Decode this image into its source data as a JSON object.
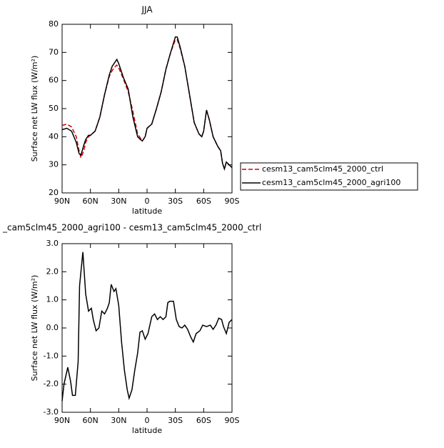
{
  "chart_data": [
    {
      "type": "line",
      "title": "JJA",
      "xlabel": "latitude",
      "ylabel": "Surface net LW flux (W/m²)",
      "x": [
        90,
        85,
        80,
        75,
        72,
        70,
        67,
        65,
        62,
        60,
        55,
        50,
        45,
        40,
        37,
        35,
        32,
        30,
        25,
        20,
        15,
        10,
        7,
        5,
        2,
        0,
        -5,
        -10,
        -15,
        -20,
        -25,
        -30,
        -32,
        -35,
        -40,
        -45,
        -50,
        -55,
        -58,
        -60,
        -63,
        -66,
        -70,
        -75,
        -78,
        -80,
        -82,
        -84,
        -87,
        -90
      ],
      "series": [
        {
          "name": "cesm13_cam5clm45_2000_ctrl",
          "color": "#cc0000",
          "linestyle": "dashed",
          "values": [
            44,
            44.5,
            43.5,
            40,
            35,
            32.5,
            35,
            38,
            40,
            40.5,
            42,
            47,
            55,
            61.5,
            63.5,
            64.5,
            65.5,
            64.5,
            60.5,
            56,
            49,
            41,
            39.5,
            38.5,
            40,
            43,
            44.5,
            50,
            56,
            64,
            70,
            74.5,
            74.5,
            71.5,
            65,
            55,
            45,
            41,
            40,
            42,
            49.5,
            46,
            40,
            36.5,
            35,
            30.5,
            28.5,
            31,
            30,
            29
          ]
        },
        {
          "name": "cesm13_cam5clm45_2000_agri100",
          "color": "#000000",
          "linestyle": "solid",
          "values": [
            42.5,
            43,
            42,
            38,
            34,
            33.5,
            37,
            39,
            40.5,
            40.5,
            42,
            47,
            55,
            62,
            65,
            66,
            67.5,
            66,
            61,
            57,
            47,
            40,
            39,
            38.5,
            40,
            43,
            44.5,
            50,
            56,
            64,
            70,
            75.5,
            75.5,
            72,
            65,
            55,
            45,
            41,
            40,
            42,
            49.5,
            46,
            40,
            36.5,
            35,
            30.5,
            28.5,
            31,
            30,
            29
          ]
        }
      ],
      "xlim": [
        90,
        -90
      ],
      "xticks": [
        {
          "value": 90,
          "label": "90N"
        },
        {
          "value": 60,
          "label": "60N"
        },
        {
          "value": 30,
          "label": "30N"
        },
        0,
        {
          "value": -30,
          "label": "30S"
        },
        {
          "value": -60,
          "label": "60S"
        },
        {
          "value": -90,
          "label": "90S"
        }
      ],
      "ylim": [
        20,
        80
      ],
      "yticks": [
        20,
        30,
        40,
        50,
        60,
        70,
        80
      ],
      "legend": "right"
    },
    {
      "type": "line",
      "title": "_cam5clm45_2000_agri100 - cesm13_cam5clm45_2000_ctrl",
      "xlabel": "latitude",
      "ylabel": "Surface net LW flux (W/m²)",
      "x": [
        90,
        88,
        84,
        81,
        79,
        76,
        73,
        71.5,
        68,
        65,
        62,
        59,
        57,
        54,
        51,
        48,
        45,
        42,
        40,
        38,
        35,
        33,
        30,
        27,
        24,
        21,
        19,
        16,
        13,
        10,
        7.5,
        5,
        2,
        -1,
        -5,
        -8,
        -11,
        -14,
        -17,
        -20,
        -22,
        -24,
        -28,
        -31,
        -34,
        -37,
        -40,
        -43,
        -46,
        -49,
        -52,
        -56,
        -59,
        -63,
        -67,
        -70,
        -73,
        -76,
        -79,
        -81,
        -84,
        -87,
        -90
      ],
      "series": [
        {
          "color": "#000000",
          "linestyle": "solid",
          "values": [
            -2.6,
            -2.0,
            -1.4,
            -1.9,
            -2.4,
            -2.4,
            -1.2,
            1.5,
            2.7,
            1.2,
            0.6,
            0.7,
            0.3,
            -0.1,
            0,
            0.6,
            0.5,
            0.7,
            0.9,
            1.55,
            1.3,
            1.4,
            0.8,
            -0.5,
            -1.5,
            -2.2,
            -2.5,
            -2.2,
            -1.5,
            -0.9,
            -0.15,
            -0.1,
            -0.4,
            -0.2,
            0.4,
            0.5,
            0.3,
            0.4,
            0.3,
            0.4,
            0.9,
            0.95,
            0.95,
            0.3,
            0.05,
            0,
            0.1,
            -0.05,
            -0.3,
            -0.5,
            -0.2,
            -0.1,
            0.1,
            0.05,
            0.1,
            -0.05,
            0.1,
            0.35,
            0.3,
            0.05,
            -0.2,
            0.2,
            0.3
          ]
        }
      ],
      "xlim": [
        90,
        -90
      ],
      "xticks": [
        {
          "value": 90,
          "label": "90N"
        },
        {
          "value": 60,
          "label": "60N"
        },
        {
          "value": 30,
          "label": "30N"
        },
        0,
        {
          "value": -30,
          "label": "30S"
        },
        {
          "value": -60,
          "label": "60S"
        },
        {
          "value": -90,
          "label": "90S"
        }
      ],
      "ylim": [
        -3,
        3
      ],
      "yticks": [
        {
          "value": -3,
          "label": "-3.0"
        },
        {
          "value": -2,
          "label": "-2.0"
        },
        {
          "value": -1,
          "label": "-1.0"
        },
        {
          "value": 0,
          "label": "0.0"
        },
        {
          "value": 1,
          "label": "1.0"
        },
        {
          "value": 2,
          "label": "2.0"
        },
        {
          "value": 3,
          "label": "3.0"
        }
      ]
    }
  ]
}
